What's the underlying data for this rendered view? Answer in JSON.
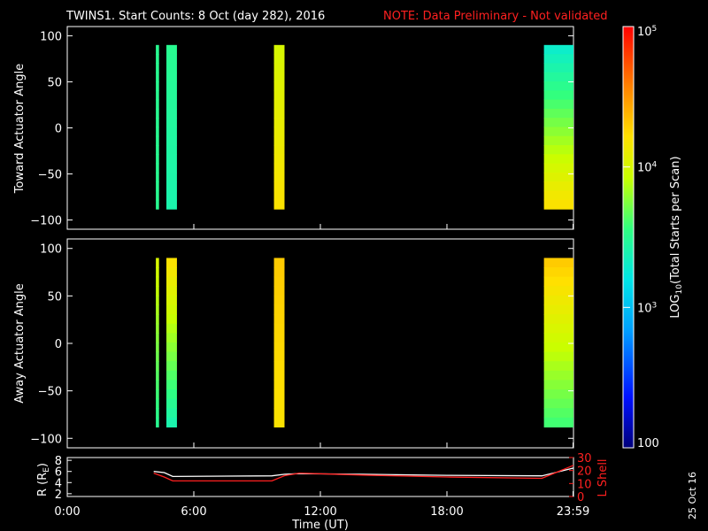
{
  "header": {
    "title": "TWINS1. Start Counts:  8 Oct (day 282), 2016",
    "note": "NOTE: Data Preliminary - Not validated",
    "note_color": "#ff2020"
  },
  "footer": {
    "stamp": "25 Oct 16"
  },
  "chart_data": [
    {
      "type": "heatmap",
      "panel": "toward",
      "ylabel": "Toward Actuator Angle",
      "ylim": [
        -110,
        110
      ],
      "yticks": [
        100,
        50,
        0,
        -50,
        -100
      ],
      "y_range_data": [
        -88,
        90
      ],
      "log10_levels_note": "values are log10 of total starts per scan",
      "blocks": [
        {
          "t_start": 4.2,
          "t_end": 4.35,
          "level_top": 3.5,
          "level_bottom": 3.5
        },
        {
          "t_start": 4.7,
          "t_end": 5.2,
          "level_top": 3.5,
          "level_bottom": 3.4
        },
        {
          "t_start": 9.8,
          "t_end": 10.3,
          "level_top": 4.0,
          "level_bottom": 4.2
        },
        {
          "t_start": 22.6,
          "t_end": 24.0,
          "level_top": 3.3,
          "level_bottom": 4.2
        }
      ]
    },
    {
      "type": "heatmap",
      "panel": "away",
      "ylabel": "Away Actuator Angle",
      "ylim": [
        -110,
        110
      ],
      "yticks": [
        100,
        50,
        0,
        -50,
        -100
      ],
      "y_range_data": [
        -88,
        90
      ],
      "blocks": [
        {
          "t_start": 4.2,
          "t_end": 4.35,
          "level_top": 4.0,
          "level_bottom": 3.5
        },
        {
          "t_start": 4.7,
          "t_end": 5.2,
          "level_top": 4.2,
          "level_bottom": 3.4
        },
        {
          "t_start": 9.8,
          "t_end": 10.3,
          "level_top": 4.3,
          "level_bottom": 4.2
        },
        {
          "t_start": 22.6,
          "t_end": 24.0,
          "level_top": 4.3,
          "level_bottom": 3.6
        }
      ]
    },
    {
      "type": "line",
      "panel": "orbit",
      "ylabel_left": "R (R",
      "ylabel_left_sub": "E",
      "ylabel_left_end": ")",
      "ylabel_right": "L Shell",
      "yticks_left": [
        8,
        6,
        4,
        2
      ],
      "ylim_left": [
        1.5,
        8.5
      ],
      "yticks_right": [
        30,
        20,
        10,
        0
      ],
      "ylim_right": [
        0,
        30
      ],
      "xlabel": "Time (UT)",
      "xticks": [
        {
          "t": 0,
          "label": "0:00"
        },
        {
          "t": 6,
          "label": "6:00"
        },
        {
          "t": 12,
          "label": "12:00"
        },
        {
          "t": 18,
          "label": "18:00"
        },
        {
          "t": 23.98,
          "label": "23:59"
        }
      ],
      "xlim": [
        0,
        24
      ],
      "series": [
        {
          "color": "#ffffff",
          "x": [
            4.1,
            4.6,
            5.0,
            9.7,
            10.3,
            11.0,
            14.0,
            18.0,
            22.5,
            24.0
          ],
          "y": [
            6.0,
            5.8,
            5.1,
            5.2,
            5.5,
            5.6,
            5.5,
            5.3,
            5.2,
            6.6
          ]
        },
        {
          "color": "#ff2020",
          "axis": "right",
          "x": [
            4.1,
            4.6,
            5.0,
            9.7,
            10.3,
            11.0,
            14.0,
            18.0,
            22.5,
            24.0
          ],
          "y": [
            18.0,
            15.0,
            12.0,
            12.0,
            16.0,
            18.0,
            16.5,
            15.0,
            14.0,
            24.0
          ]
        }
      ]
    }
  ],
  "colorbar": {
    "label_pre": "LOG",
    "label_sub": "10",
    "label_post": "(Total Starts per Scan)",
    "ticks": [
      {
        "base": "10",
        "exp": "5",
        "level": 5
      },
      {
        "base": "10",
        "exp": "4",
        "level": 4
      },
      {
        "base": "10",
        "exp": "3",
        "level": 3
      },
      {
        "base": "100",
        "exp": "",
        "level": 2
      }
    ],
    "range": [
      2,
      5
    ]
  }
}
